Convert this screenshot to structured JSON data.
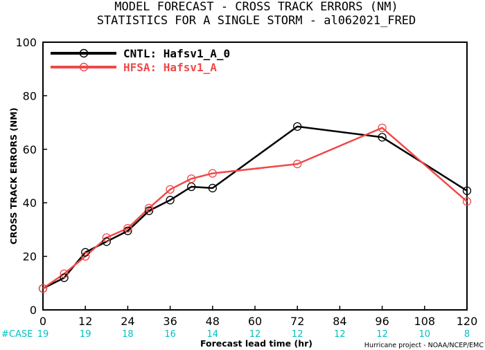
{
  "chart_data": {
    "type": "line",
    "title": "MODEL FORECAST - CROSS TRACK ERRORS (NM)",
    "subtitle": "STATISTICS FOR A SINGLE STORM - al062021_FRED",
    "xlabel": "Forecast lead time (hr)",
    "ylabel": "CROSS TRACK ERRORS (NM)",
    "xlim": [
      0,
      120
    ],
    "ylim": [
      0,
      100
    ],
    "xticks": [
      0,
      12,
      24,
      36,
      48,
      60,
      72,
      84,
      96,
      108,
      120
    ],
    "yticks": [
      0,
      20,
      40,
      60,
      80,
      100
    ],
    "legend_position": "top-left",
    "series": [
      {
        "name": "CNTL: Hafsv1_A_0",
        "color": "#000000",
        "x": [
          0,
          6,
          12,
          18,
          24,
          30,
          36,
          42,
          48,
          72,
          96,
          120
        ],
        "values": [
          8,
          12,
          21.5,
          25.5,
          29.5,
          37,
          41,
          46,
          45.5,
          68.5,
          64.5,
          44.5
        ]
      },
      {
        "name": "HFSA: Hafsv1_A",
        "color": "#f04848",
        "x": [
          0,
          6,
          12,
          18,
          24,
          30,
          36,
          42,
          48,
          72,
          96,
          120
        ],
        "values": [
          8,
          13.5,
          20,
          27,
          30.5,
          38,
          45,
          49,
          51,
          54.5,
          68,
          40.5
        ]
      }
    ],
    "case_label": "#CASE",
    "case_counts": [
      "19",
      "19",
      "18",
      "16",
      "14",
      "12",
      "12",
      "12",
      "12",
      "10",
      "8"
    ],
    "case_color": "#00c0c0",
    "credit": "Hurricane project - NOAA/NCEP/EMC"
  }
}
